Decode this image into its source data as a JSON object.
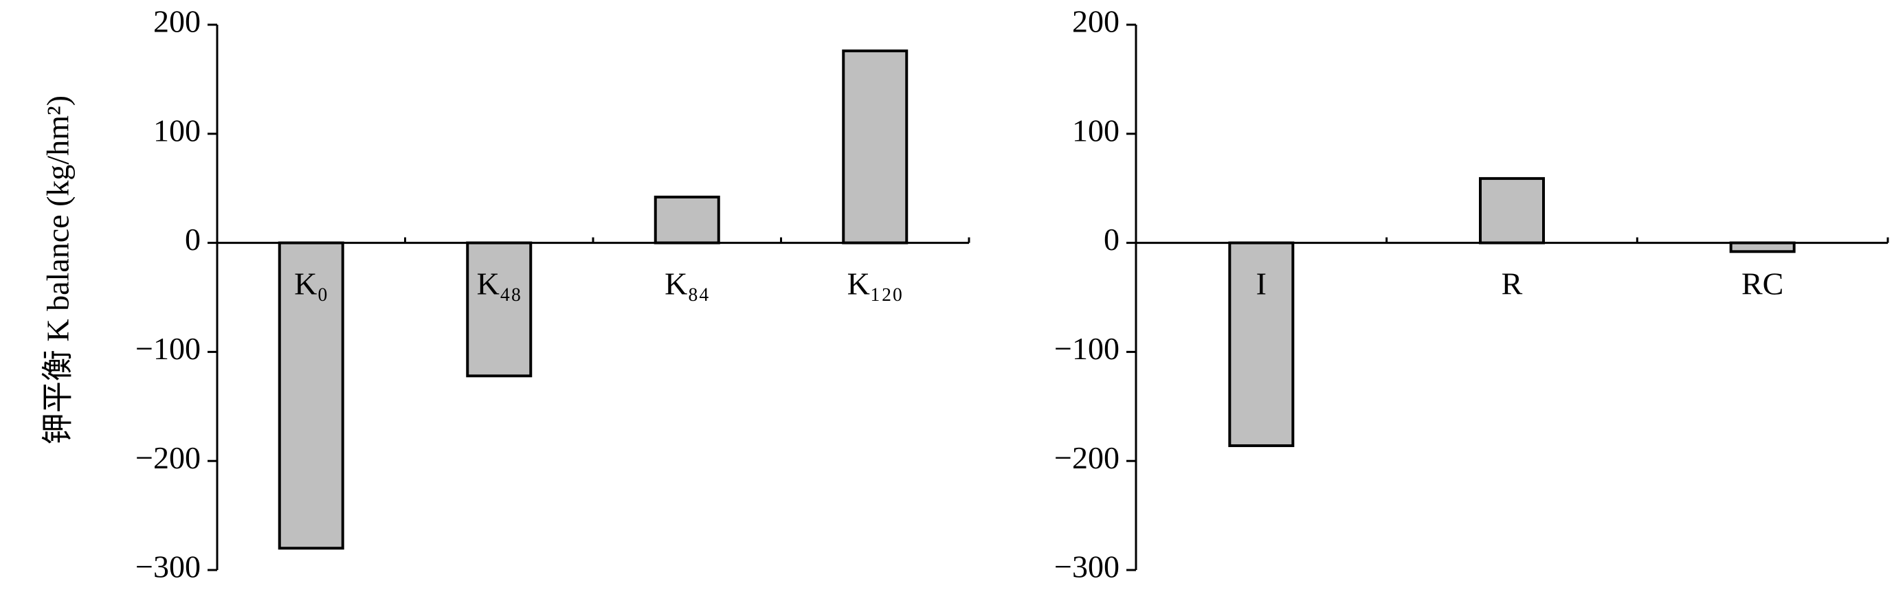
{
  "chart_data": [
    {
      "type": "bar",
      "y_label": "钾平衡 K balance (kg/hm²)",
      "categories": [
        "K₀",
        "K₄₈",
        "K₈₄",
        "K₁₂₀"
      ],
      "values": [
        -280,
        -122,
        42,
        176
      ],
      "color": "#bfbfbf",
      "ylim": [
        -300,
        200
      ],
      "yticks": [
        {
          "value": -300,
          "label": "−300"
        },
        {
          "value": -200,
          "label": "−200"
        },
        {
          "value": -100,
          "label": "−100"
        },
        0,
        100,
        200
      ]
    },
    {
      "type": "bar",
      "categories": [
        "I",
        "R",
        "RC"
      ],
      "values": [
        -186,
        59,
        -8
      ],
      "color": "#bfbfbf",
      "ylim": [
        -300,
        200
      ],
      "yticks": [
        {
          "value": -300,
          "label": "−300"
        },
        {
          "value": -200,
          "label": "−200"
        },
        {
          "value": -100,
          "label": "−100"
        },
        0,
        100,
        200
      ]
    }
  ]
}
